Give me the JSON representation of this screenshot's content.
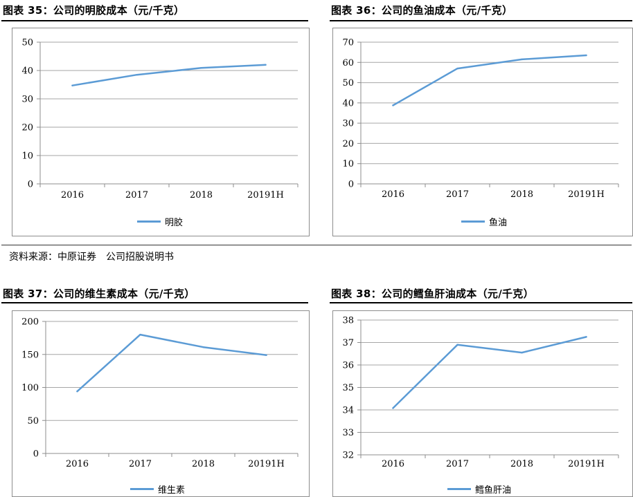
{
  "source_note": "资料来源：中原证券　公司招股说明书",
  "charts": [
    {
      "heading": "图表 35：公司的明胶成本（元/千克）"
    },
    {
      "heading": "图表 36：公司的鱼油成本（元/千克）"
    },
    {
      "heading": "图表 37：公司的维生素成本（元/千克）"
    },
    {
      "heading": "图表 38：公司的鳕鱼肝油成本（元/千克）"
    }
  ],
  "chart_data": [
    {
      "type": "line",
      "title": "图表 35：公司的明胶成本（元/千克）",
      "categories": [
        "2016",
        "2017",
        "2018",
        "20191H"
      ],
      "series": [
        {
          "name": "明胶",
          "values": [
            34.7,
            38.5,
            40.9,
            42.0
          ],
          "color": "#5b9bd5"
        }
      ],
      "yticks": [
        "0",
        "10",
        "20",
        "30",
        "40",
        "50"
      ],
      "ylim": [
        0,
        50
      ],
      "grid": true,
      "legend": "bottom"
    },
    {
      "type": "line",
      "title": "图表 36：公司的鱼油成本（元/千克）",
      "categories": [
        "2016",
        "2017",
        "2018",
        "20191H"
      ],
      "series": [
        {
          "name": "鱼油",
          "values": [
            38.8,
            57.0,
            61.5,
            63.5
          ],
          "color": "#5b9bd5"
        }
      ],
      "yticks": [
        "0",
        "10",
        "20",
        "30",
        "40",
        "50",
        "60",
        "70"
      ],
      "ylim": [
        0,
        70
      ],
      "grid": true,
      "legend": "bottom"
    },
    {
      "type": "line",
      "title": "图表 37：公司的维生素成本（元/千克）",
      "categories": [
        "2016",
        "2017",
        "2018",
        "20191H"
      ],
      "series": [
        {
          "name": "维生素",
          "values": [
            94,
            180,
            161,
            149
          ],
          "color": "#5b9bd5"
        }
      ],
      "yticks": [
        "0",
        "50",
        "100",
        "150",
        "200"
      ],
      "ylim": [
        0,
        200
      ],
      "grid": true,
      "legend": "bottom"
    },
    {
      "type": "line",
      "title": "图表 38：公司的鳕鱼肝油成本（元/千克）",
      "categories": [
        "2016",
        "2017",
        "2018",
        "20191H"
      ],
      "series": [
        {
          "name": "鳕鱼肝油",
          "values": [
            34.08,
            36.9,
            36.55,
            37.25
          ],
          "color": "#5b9bd5"
        }
      ],
      "yticks": [
        "32",
        "33",
        "34",
        "35",
        "36",
        "37",
        "38"
      ],
      "ylim": [
        32,
        38
      ],
      "grid": true,
      "legend": "bottom"
    }
  ]
}
